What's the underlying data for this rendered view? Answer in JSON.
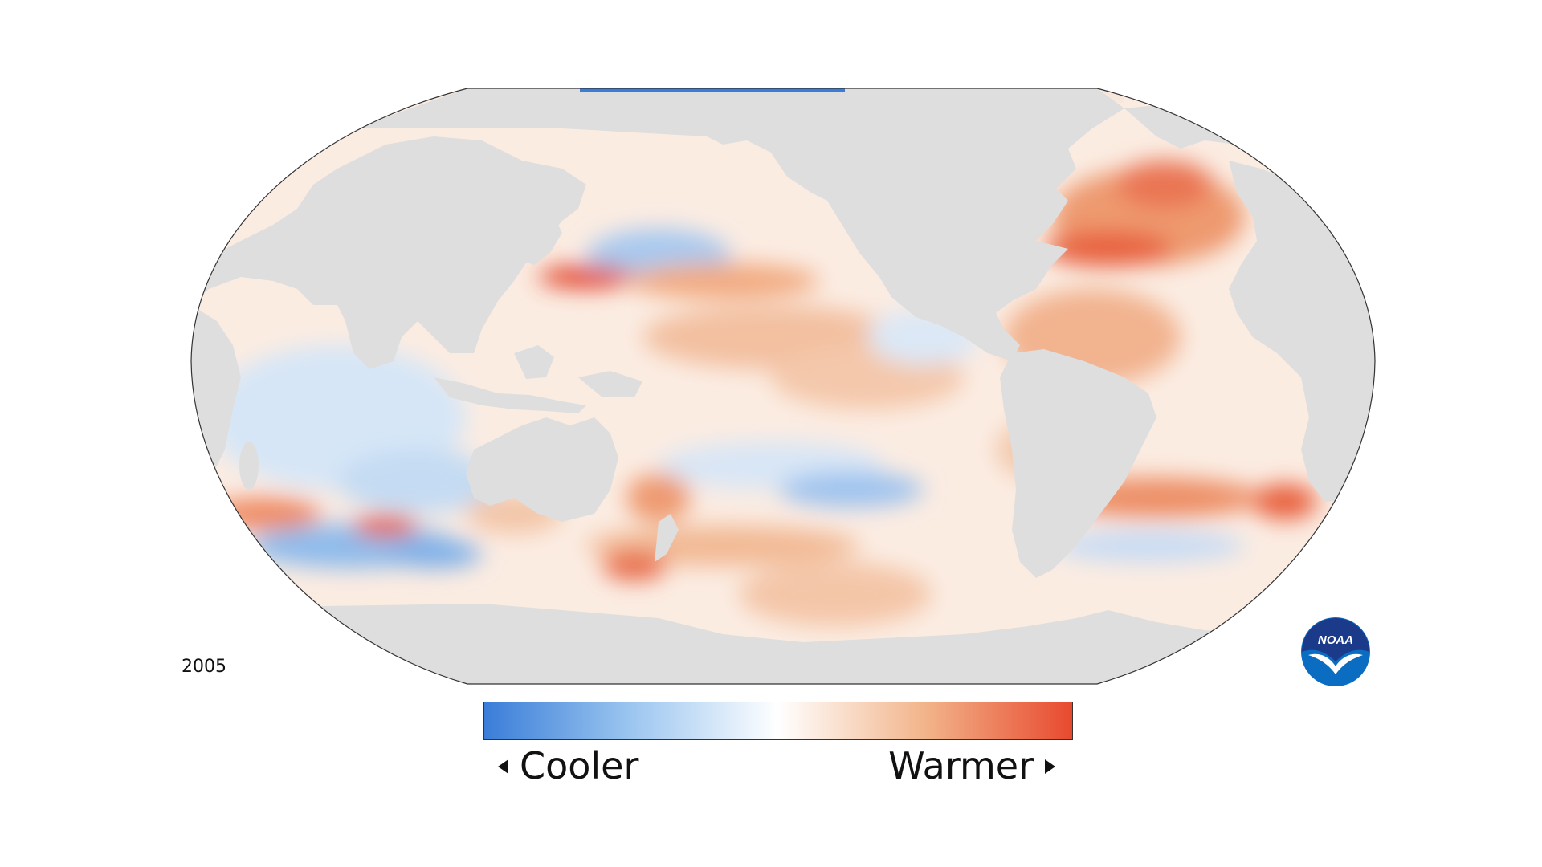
{
  "year_label": "2005",
  "legend": {
    "cooler_label": "Cooler",
    "warmer_label": "Warmer",
    "gradient_colors": [
      "#3a7dd8",
      "#9cc6f0",
      "#ffffff",
      "#f2b48a",
      "#e8492f"
    ]
  },
  "logo": {
    "text": "NOAA",
    "icon": "noaa-logo-icon"
  },
  "colors": {
    "land": "#dedede",
    "warm": "#e8492f",
    "cool": "#3a7dd8"
  }
}
